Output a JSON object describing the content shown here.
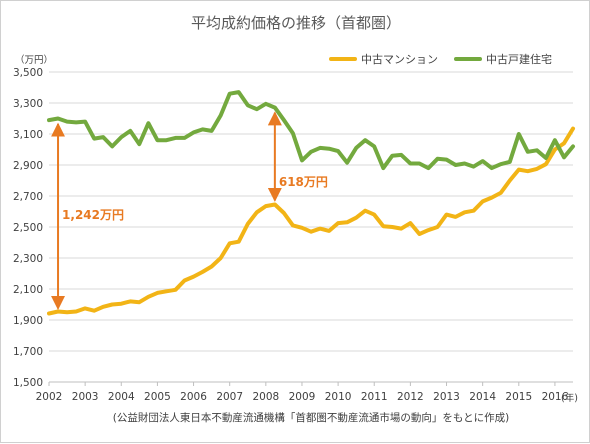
{
  "chart_data": {
    "type": "line",
    "title": "平均成約価格の推移（首都圏）",
    "ylabel": "（万円）",
    "xlabel": "(年)",
    "ylim": [
      1500,
      3500
    ],
    "yticks": [
      "1,500",
      "1,700",
      "1,900",
      "2,100",
      "2,300",
      "2,500",
      "2,700",
      "2,900",
      "3,100",
      "3,300",
      "3,500"
    ],
    "x_tick_labels": [
      "2002",
      "2003",
      "2004",
      "2005",
      "2006",
      "2007",
      "2008",
      "2009",
      "2010",
      "2011",
      "2012",
      "2013",
      "2014",
      "2015",
      "2016"
    ],
    "x_start": 2002,
    "x_end": 2016.5,
    "grid": true,
    "legend_position": "top-right",
    "series": [
      {
        "name": "中古マンション",
        "color": "#f2b416",
        "x": [
          2002.0,
          2002.25,
          2002.5,
          2002.75,
          2003.0,
          2003.25,
          2003.5,
          2003.75,
          2004.0,
          2004.25,
          2004.5,
          2004.75,
          2005.0,
          2005.25,
          2005.5,
          2005.75,
          2006.0,
          2006.25,
          2006.5,
          2006.75,
          2007.0,
          2007.25,
          2007.5,
          2007.75,
          2008.0,
          2008.25,
          2008.5,
          2008.75,
          2009.0,
          2009.25,
          2009.5,
          2009.75,
          2010.0,
          2010.25,
          2010.5,
          2010.75,
          2011.0,
          2011.25,
          2011.5,
          2011.75,
          2012.0,
          2012.25,
          2012.5,
          2012.75,
          2013.0,
          2013.25,
          2013.5,
          2013.75,
          2014.0,
          2014.25,
          2014.5,
          2014.75,
          2015.0,
          2015.25,
          2015.5,
          2015.75,
          2016.0,
          2016.25,
          2016.5
        ],
        "values": [
          1942,
          1955,
          1950,
          1955,
          1975,
          1960,
          1985,
          2000,
          2005,
          2020,
          2015,
          2050,
          2075,
          2085,
          2095,
          2155,
          2180,
          2210,
          2245,
          2300,
          2395,
          2405,
          2520,
          2595,
          2635,
          2645,
          2590,
          2510,
          2495,
          2470,
          2490,
          2475,
          2525,
          2530,
          2560,
          2605,
          2580,
          2505,
          2500,
          2490,
          2525,
          2455,
          2480,
          2500,
          2580,
          2565,
          2595,
          2605,
          2665,
          2690,
          2720,
          2800,
          2870,
          2860,
          2875,
          2905,
          3000,
          3040,
          3135
        ]
      },
      {
        "name": "中古戸建住宅",
        "color": "#73a93e",
        "x": [
          2002.0,
          2002.25,
          2002.5,
          2002.75,
          2003.0,
          2003.25,
          2003.5,
          2003.75,
          2004.0,
          2004.25,
          2004.5,
          2004.75,
          2005.0,
          2005.25,
          2005.5,
          2005.75,
          2006.0,
          2006.25,
          2006.5,
          2006.75,
          2007.0,
          2007.25,
          2007.5,
          2007.75,
          2008.0,
          2008.25,
          2008.5,
          2008.75,
          2009.0,
          2009.25,
          2009.5,
          2009.75,
          2010.0,
          2010.25,
          2010.5,
          2010.75,
          2011.0,
          2011.25,
          2011.5,
          2011.75,
          2012.0,
          2012.25,
          2012.5,
          2012.75,
          2013.0,
          2013.25,
          2013.5,
          2013.75,
          2014.0,
          2014.25,
          2014.5,
          2014.75,
          2015.0,
          2015.25,
          2015.5,
          2015.75,
          2016.0,
          2016.25,
          2016.5
        ],
        "values": [
          3190,
          3200,
          3180,
          3175,
          3180,
          3070,
          3080,
          3020,
          3080,
          3120,
          3035,
          3170,
          3060,
          3060,
          3075,
          3075,
          3110,
          3130,
          3120,
          3220,
          3360,
          3370,
          3285,
          3260,
          3295,
          3270,
          3190,
          3105,
          2930,
          2985,
          3010,
          3005,
          2990,
          2915,
          3010,
          3060,
          3020,
          2880,
          2960,
          2965,
          2910,
          2910,
          2880,
          2940,
          2935,
          2900,
          2910,
          2890,
          2925,
          2880,
          2905,
          2920,
          3100,
          2985,
          2995,
          2945,
          3060,
          2950,
          3020
        ]
      }
    ],
    "annotations": [
      {
        "text": "1,242万円",
        "x": 2002.25,
        "y_top": 3190,
        "y_bottom": 1948
      },
      {
        "text": "618万円",
        "x": 2008.25,
        "y_top": 3263,
        "y_bottom": 2645
      }
    ],
    "source_note": "(公益財団法人東日本不動産流通機構「首都圏不動産流通市場の動向」をもとに作成)"
  }
}
